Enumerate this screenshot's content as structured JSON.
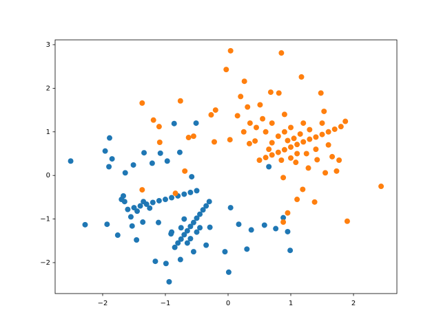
{
  "chart_data": {
    "type": "scatter",
    "series": [
      {
        "color": "#1f77b4",
        "x": [
          -2.51,
          -2.28,
          -1.89,
          -1.96,
          -1.9,
          -1.85,
          -1.64,
          -1.51,
          -1.34,
          -1.21,
          -0.97,
          -1.08,
          -0.86,
          -0.51,
          -0.77,
          -1.67,
          -1.93,
          -1.76,
          -1.46,
          -1.16,
          -0.99,
          -0.94,
          -0.76,
          -0.05,
          0.01,
          0.04,
          0.17,
          0.3,
          0.37,
          0.58,
          0.76,
          0.88,
          0.99,
          0.95,
          0.65,
          -0.58,
          -0.29,
          -0.35,
          -1.11,
          -1.53,
          -1.36,
          -0.91,
          -1.6,
          -1.5,
          -1.4,
          -1.3,
          -1.2,
          -1.1,
          -1.0,
          -0.9,
          -0.8,
          -0.7,
          -0.6,
          -0.5,
          -1.45,
          -1.35,
          -1.25,
          -1.65,
          -1.7,
          -1.55,
          -0.85,
          -0.8,
          -0.75,
          -0.7,
          -0.65,
          -0.6,
          -0.55,
          -0.5,
          -0.45,
          -0.4,
          -0.35,
          -0.3,
          -0.75,
          -0.6,
          -0.5,
          -0.7,
          -0.9,
          -0.55,
          -0.65,
          -0.45
        ],
        "values": [
          0.33,
          -1.13,
          0.86,
          0.56,
          0.2,
          0.38,
          0.06,
          0.24,
          0.52,
          0.28,
          0.33,
          0.51,
          1.19,
          1.2,
          0.53,
          -0.47,
          -1.12,
          -1.37,
          -1.48,
          -1.97,
          -2.02,
          -2.44,
          -1.93,
          -1.75,
          -2.22,
          -0.74,
          -1.12,
          -1.69,
          -1.25,
          -1.14,
          -1.22,
          -0.97,
          -1.72,
          -1.29,
          0.2,
          -0.03,
          -1.19,
          -1.6,
          -1.08,
          -1.16,
          -1.07,
          -1.34,
          -0.78,
          -0.74,
          -0.7,
          -0.66,
          -0.62,
          -0.58,
          -0.55,
          -0.51,
          -0.47,
          -0.43,
          -0.39,
          -0.35,
          -0.82,
          -0.6,
          -0.75,
          -0.6,
          -0.55,
          -0.95,
          -1.65,
          -1.55,
          -1.46,
          -1.36,
          -1.27,
          -1.17,
          -1.08,
          -0.98,
          -0.89,
          -0.79,
          -0.7,
          -0.6,
          -1.2,
          -1.45,
          -1.3,
          -1.0,
          -1.3,
          -1.75,
          -1.55,
          -1.2
        ]
      },
      {
        "color": "#ff7f0e",
        "x": [
          0.04,
          -0.03,
          0.85,
          1.17,
          0.26,
          0.2,
          -1.37,
          -0.76,
          -1.19,
          -1.1,
          -1.09,
          -0.63,
          -0.55,
          -0.22,
          -0.27,
          -0.2,
          -0.69,
          -1.37,
          -0.84,
          2.44,
          1.9,
          1.38,
          1.1,
          1.19,
          0.88,
          0.95,
          0.88,
          1.48,
          1.53,
          0.68,
          0.81,
          0.03,
          0.15,
          0.31,
          0.51,
          1.87,
          1.73,
          1.77,
          1.55,
          1.28,
          1.08,
          1.42,
          1.66,
          0.43,
          0.34,
          0.5,
          0.6,
          0.7,
          0.8,
          0.9,
          1.0,
          1.1,
          1.2,
          1.3,
          1.4,
          1.5,
          1.6,
          1.7,
          1.8,
          0.7,
          0.8,
          0.9,
          1.0,
          1.1,
          1.2,
          1.3,
          1.4,
          1.5,
          0.6,
          0.55,
          0.7,
          0.45,
          0.35,
          0.25,
          1.0,
          1.25,
          1.6,
          0.85,
          0.9,
          0.65,
          1.05,
          1.15,
          0.95
        ],
        "values": [
          2.86,
          2.43,
          2.81,
          2.26,
          2.16,
          1.81,
          1.66,
          1.71,
          1.27,
          1.12,
          0.76,
          0.87,
          0.9,
          0.77,
          1.39,
          1.5,
          0.1,
          -0.33,
          -0.41,
          -0.25,
          -1.05,
          -0.61,
          -0.55,
          -0.32,
          -0.05,
          -0.86,
          -1.07,
          1.89,
          1.47,
          1.91,
          1.89,
          0.82,
          1.37,
          1.57,
          1.62,
          1.24,
          0.1,
          0.35,
          0.06,
          0.17,
          0.3,
          0.36,
          0.43,
          0.79,
          0.73,
          0.35,
          0.41,
          0.47,
          0.53,
          0.59,
          0.65,
          0.71,
          0.77,
          0.83,
          0.88,
          0.94,
          1.0,
          1.06,
          1.12,
          0.75,
          0.9,
          1.0,
          1.1,
          0.5,
          1.2,
          1.05,
          0.6,
          1.2,
          1.0,
          1.3,
          1.2,
          1.1,
          1.2,
          1.0,
          0.4,
          0.5,
          0.7,
          0.35,
          1.4,
          0.6,
          0.85,
          0.95,
          0.8
        ]
      }
    ],
    "xlim": [
      -2.758,
      2.692
    ],
    "ylim": [
      -2.71,
      3.11
    ],
    "xticks": [
      {
        "value": -2,
        "label": "−2"
      },
      {
        "value": -1,
        "label": "−1"
      },
      0,
      1,
      2
    ],
    "yticks": [
      {
        "value": -2,
        "label": "−2"
      },
      {
        "value": -1,
        "label": "−1"
      },
      0,
      1,
      2,
      3
    ]
  }
}
